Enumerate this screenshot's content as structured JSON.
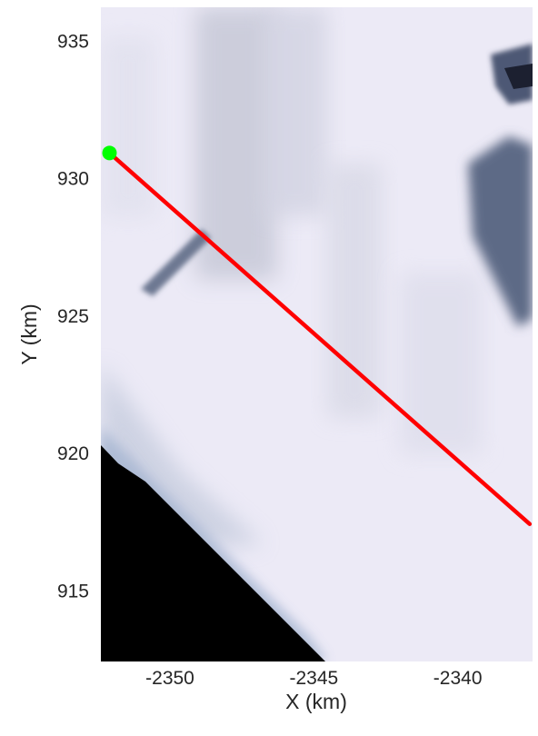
{
  "chart_data": {
    "type": "image-map",
    "xlabel": "X (km)",
    "ylabel": "Y (km)",
    "xlim": [
      -2352.4,
      -2337.4
    ],
    "ylim": [
      912.4,
      936.2
    ],
    "xticks": [
      -2350,
      -2345,
      -2340
    ],
    "yticks": [
      915,
      920,
      925,
      930,
      935
    ],
    "xtick_labels": [
      "-2350",
      "-2345",
      "-2340"
    ],
    "ytick_labels": [
      "915",
      "920",
      "925",
      "930",
      "935"
    ],
    "grid": false,
    "background": "satellite imagery: sea ice and cloud (white/lavender), open water (black) at lower left",
    "track_line": {
      "color": "#ff0000",
      "points": [
        {
          "x": -2352.1,
          "y": 930.9
        },
        {
          "x": -2337.5,
          "y": 917.4
        }
      ]
    },
    "start_marker": {
      "color": "#00ff00",
      "shape": "filled-circle",
      "x": -2352.1,
      "y": 930.9
    },
    "colors": {
      "ice": "#eceaf6",
      "shadow": "#5d6a86",
      "water": "#000000",
      "track": "#ff0000",
      "marker": "#00ff00"
    }
  }
}
